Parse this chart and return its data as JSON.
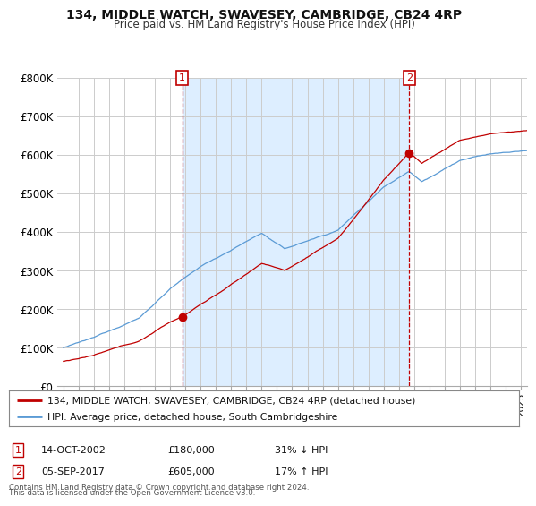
{
  "title": "134, MIDDLE WATCH, SWAVESEY, CAMBRIDGE, CB24 4RP",
  "subtitle": "Price paid vs. HM Land Registry's House Price Index (HPI)",
  "legend_line1": "134, MIDDLE WATCH, SWAVESEY, CAMBRIDGE, CB24 4RP (detached house)",
  "legend_line2": "HPI: Average price, detached house, South Cambridgeshire",
  "annotation1_date": "14-OCT-2002",
  "annotation1_price": "£180,000",
  "annotation1_hpi": "31% ↓ HPI",
  "annotation1_year": 2002.8,
  "annotation1_value": 180000,
  "annotation2_date": "05-SEP-2017",
  "annotation2_price": "£605,000",
  "annotation2_hpi": "17% ↑ HPI",
  "annotation2_year": 2017.67,
  "annotation2_value": 605000,
  "footer_line1": "Contains HM Land Registry data © Crown copyright and database right 2024.",
  "footer_line2": "This data is licensed under the Open Government Licence v3.0.",
  "hpi_color": "#5b9bd5",
  "price_color": "#c00000",
  "fill_color": "#ddeeff",
  "annotation_color": "#c00000",
  "background_color": "#ffffff",
  "grid_color": "#cccccc",
  "ylim": [
    0,
    800000
  ],
  "yticks": [
    0,
    100000,
    200000,
    300000,
    400000,
    500000,
    600000,
    700000,
    800000
  ],
  "ytick_labels": [
    "£0",
    "£100K",
    "£200K",
    "£300K",
    "£400K",
    "£500K",
    "£600K",
    "£700K",
    "£800K"
  ],
  "xlim_left": 1994.6,
  "xlim_right": 2025.4
}
